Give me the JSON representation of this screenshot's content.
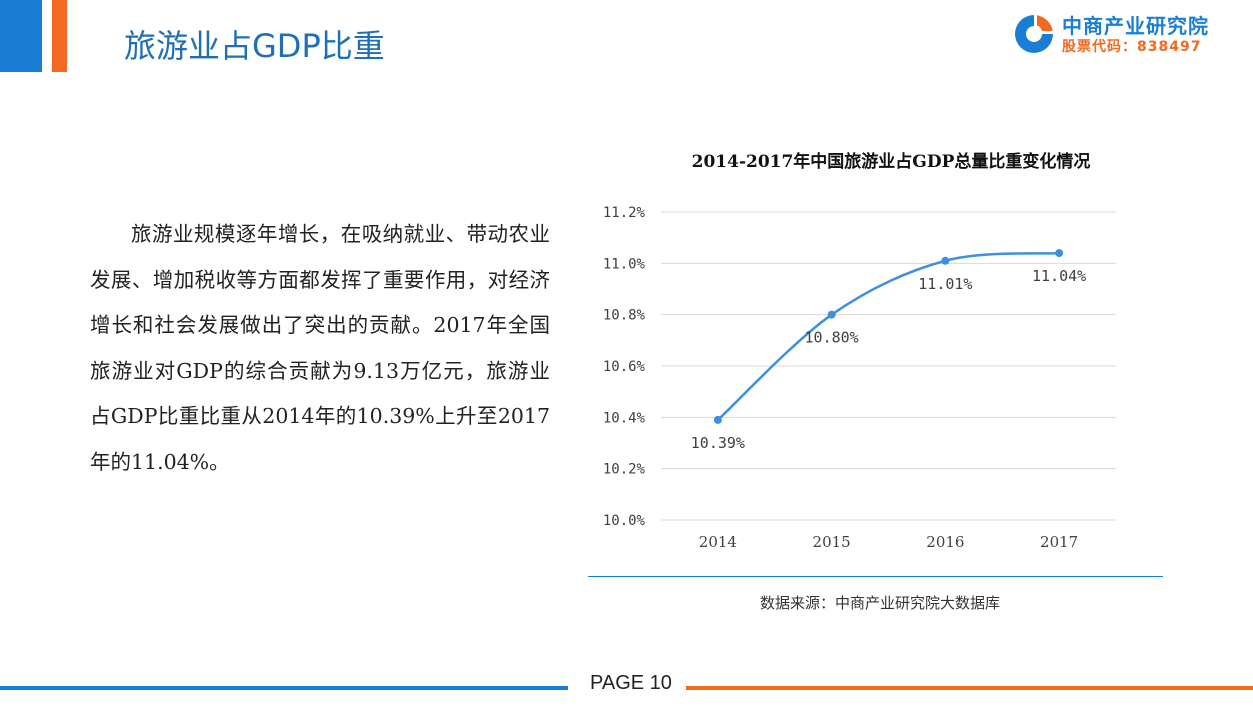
{
  "header": {
    "title": "旅游业占GDP比重",
    "logo": {
      "icon": "zhongshang-logo-icon",
      "name": "中商产业研究院",
      "stock_code": "股票代码：838497"
    }
  },
  "paragraph": "旅游业规模逐年增长，在吸纳就业、带动农业发展、增加税收等方面都发挥了重要作用，对经济增长和社会发展做出了突出的贡献。2017年全国旅游业对GDP的综合贡献为9.13万亿元，旅游业占GDP比重比重从2014年的10.39%上升至2017年的11.04%。",
  "chart_data": {
    "type": "line",
    "title": "2014-2017年中国旅游业占GDP总量比重变化情况",
    "xlabel": "",
    "ylabel": "",
    "categories": [
      "2014",
      "2015",
      "2016",
      "2017"
    ],
    "values": [
      10.39,
      10.8,
      11.01,
      11.04
    ],
    "data_labels": [
      "10.39%",
      "10.80%",
      "11.01%",
      "11.04%"
    ],
    "ylim": [
      10.0,
      11.2
    ],
    "yticks": [
      10.0,
      10.2,
      10.4,
      10.6,
      10.8,
      11.0,
      11.2
    ],
    "ytick_labels": [
      "10.0%",
      "10.2%",
      "10.4%",
      "10.6%",
      "10.8%",
      "11.0%",
      "11.2%"
    ],
    "grid": true,
    "smooth": true,
    "line_color": "#3f8fe0"
  },
  "source_note": "数据来源：中商产业研究院大数据库",
  "footer": {
    "page_label": "PAGE 10"
  },
  "colors": {
    "brand_blue": "#1a7fd4",
    "brand_orange": "#f26a21",
    "title_blue": "#1f6fb8"
  }
}
